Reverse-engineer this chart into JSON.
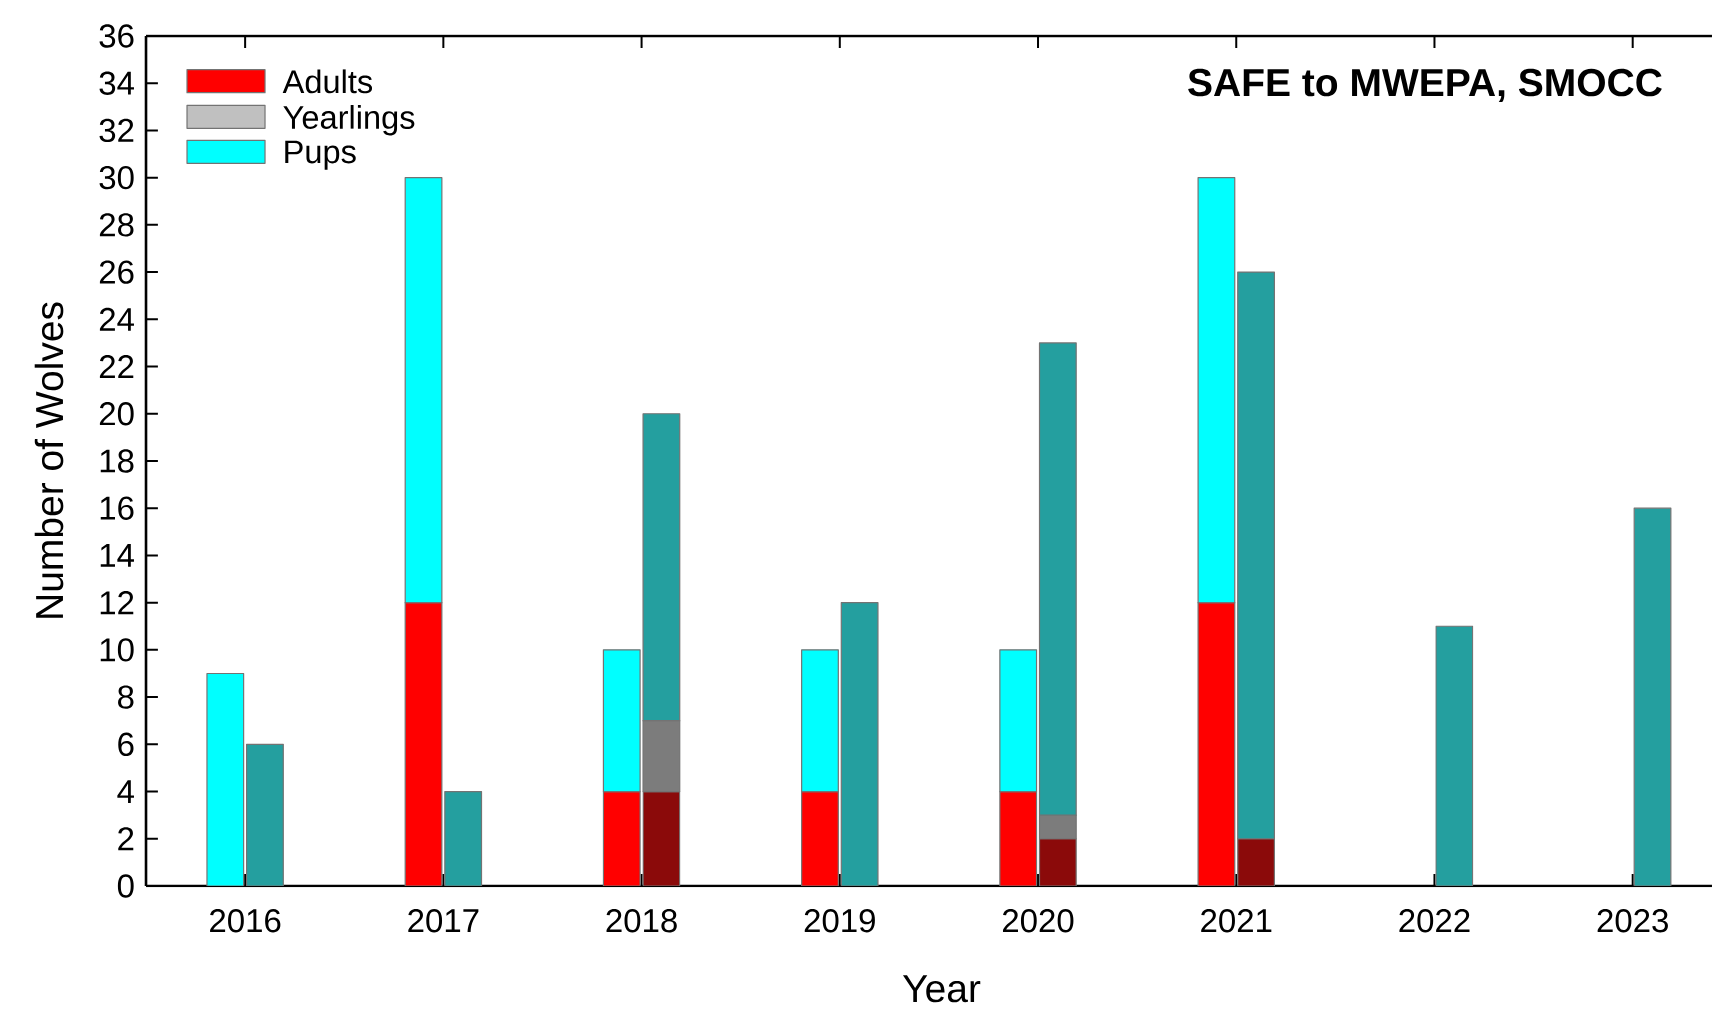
{
  "chart_data": {
    "type": "bar",
    "title": "SAFE to MWEPA, SMOCC",
    "xlabel": "Year",
    "ylabel": "Number of Wolves",
    "stacked": true,
    "x": [
      2015.9,
      2016.1,
      2016.9,
      2017.1,
      2017.9,
      2018.1,
      2018.9,
      2019.1,
      2019.9,
      2020.1,
      2020.9,
      2021.1,
      2021.9,
      2022.1,
      2022.9,
      2023.1
    ],
    "series": [
      {
        "name": "Adults",
        "color": "#ff0000",
        "values": [
          0,
          null,
          12,
          null,
          4,
          null,
          4,
          null,
          4,
          null,
          12,
          null,
          null,
          null,
          null,
          null
        ]
      },
      {
        "name": "Yearlings",
        "color": "#c0c0c0",
        "values": [
          0,
          null,
          0,
          null,
          0,
          null,
          0,
          null,
          0,
          null,
          0,
          null,
          null,
          null,
          null,
          null
        ]
      },
      {
        "name": "Pups",
        "color": "#00ffff",
        "values": [
          9,
          null,
          18,
          null,
          6,
          null,
          6,
          null,
          6,
          null,
          18,
          null,
          null,
          null,
          null,
          null
        ]
      },
      {
        "color": "#8b0a0a",
        "values": [
          null,
          0,
          null,
          0,
          null,
          4,
          null,
          0,
          null,
          2,
          null,
          2,
          null,
          0,
          null,
          0
        ]
      },
      {
        "color": "#7c7c7c",
        "values": [
          null,
          0,
          null,
          0,
          null,
          3,
          null,
          0,
          null,
          1,
          null,
          0,
          null,
          0,
          null,
          0
        ]
      },
      {
        "color": "#249f9f",
        "values": [
          null,
          6,
          null,
          4,
          null,
          13,
          null,
          12,
          null,
          20,
          null,
          24,
          null,
          11,
          null,
          16
        ]
      }
    ],
    "xlim": [
      2015.5,
      2023.4
    ],
    "xticks": [
      2016,
      2017,
      2018,
      2019,
      2020,
      2021,
      2022,
      2023
    ],
    "ylim": [
      0,
      36
    ],
    "yticks": [
      0,
      2,
      4,
      6,
      8,
      10,
      12,
      14,
      16,
      18,
      20,
      22,
      24,
      26,
      28,
      30,
      32,
      34,
      36
    ],
    "legend": "top left"
  }
}
